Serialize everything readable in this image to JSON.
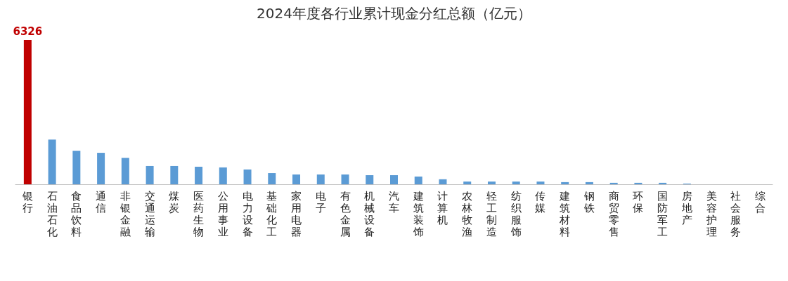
{
  "chart_data": {
    "type": "bar",
    "title": "2024年度各行业累计现金分红总额（亿元）",
    "categories": [
      "银行",
      "石油石化",
      "食品饮料",
      "通信",
      "非银金融",
      "交通运输",
      "煤炭",
      "医药生物",
      "公用事业",
      "电力设备",
      "基础化工",
      "家用电器",
      "电子",
      "有色金属",
      "机械设备",
      "汽车",
      "建筑装饰",
      "计算机",
      "农林牧渔",
      "轻工制造",
      "纺织服饰",
      "传媒",
      "建筑材料",
      "钢铁",
      "商贸零售",
      "环保",
      "国防军工",
      "房地产",
      "美容护理",
      "社会服务",
      "综合"
    ],
    "values": [
      6326,
      1960,
      1470,
      1380,
      1160,
      800,
      800,
      770,
      740,
      650,
      490,
      430,
      430,
      430,
      400,
      400,
      340,
      220,
      120,
      120,
      120,
      120,
      95,
      95,
      65,
      65,
      65,
      30,
      null,
      null,
      null
    ],
    "colors": [
      "#c00000",
      "#5b9bd5",
      "#5b9bd5",
      "#5b9bd5",
      "#5b9bd5",
      "#5b9bd5",
      "#5b9bd5",
      "#5b9bd5",
      "#5b9bd5",
      "#5b9bd5",
      "#5b9bd5",
      "#5b9bd5",
      "#5b9bd5",
      "#5b9bd5",
      "#5b9bd5",
      "#5b9bd5",
      "#5b9bd5",
      "#5b9bd5",
      "#5b9bd5",
      "#5b9bd5",
      "#5b9bd5",
      "#5b9bd5",
      "#5b9bd5",
      "#5b9bd5",
      "#5b9bd5",
      "#5b9bd5",
      "#5b9bd5",
      "#5b9bd5",
      "#5b9bd5",
      "#5b9bd5",
      "#5b9bd5"
    ],
    "value_labels": [
      "6326",
      null,
      null,
      null,
      null,
      null,
      null,
      null,
      null,
      null,
      null,
      null,
      null,
      null,
      null,
      null,
      null,
      null,
      null,
      null,
      null,
      null,
      null,
      null,
      null,
      null,
      null,
      null,
      null,
      null,
      null
    ]
  }
}
